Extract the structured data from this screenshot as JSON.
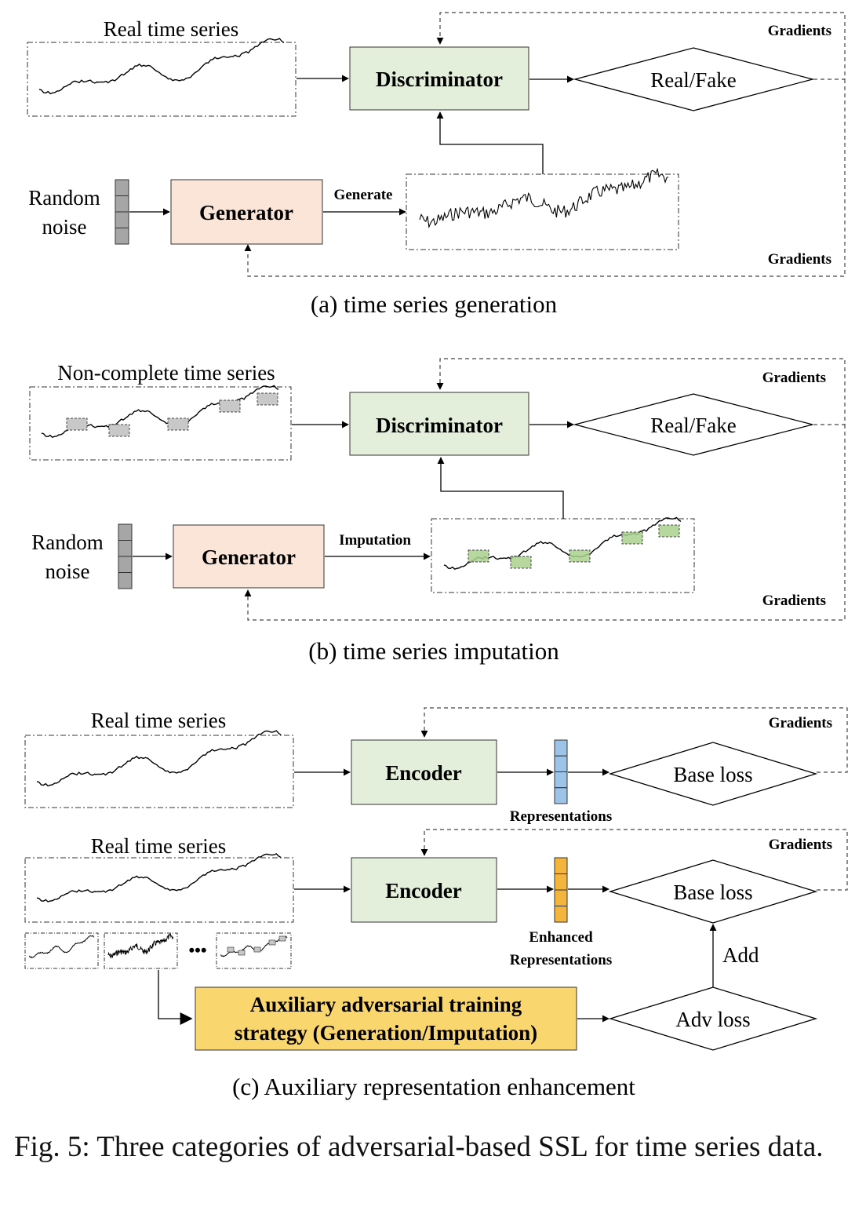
{
  "panel_a": {
    "input_label": "Real time series",
    "discriminator": "Discriminator",
    "output": "Real/Fake",
    "gradients_top": "Gradients",
    "gradients_bottom": "Gradients",
    "noise_line1": "Random",
    "noise_line2": "noise",
    "generator": "Generator",
    "generate": "Generate",
    "caption": "(a) time series generation"
  },
  "panel_b": {
    "input_label": "Non-complete time series",
    "discriminator": "Discriminator",
    "output": "Real/Fake",
    "gradients_top": "Gradients",
    "gradients_bottom": "Gradients",
    "noise_line1": "Random",
    "noise_line2": "noise",
    "generator": "Generator",
    "imputation": "Imputation",
    "caption": "(b) time series imputation"
  },
  "panel_c": {
    "input_label_1": "Real time series",
    "input_label_2": "Real time series",
    "encoder_1": "Encoder",
    "encoder_2": "Encoder",
    "representations": "Representations",
    "enhanced_line1": "Enhanced",
    "enhanced_line2": "Representations",
    "base_loss_1": "Base loss",
    "base_loss_2": "Base loss",
    "gradients_1": "Gradients",
    "gradients_2": "Gradients",
    "ellipsis": "•••",
    "aux_line1": "Auxiliary adversarial training",
    "aux_line2": "strategy (Generation/Imputation)",
    "adv_loss": "Adv loss",
    "add": "Add",
    "caption": "(c) Auxiliary representation enhancement"
  },
  "figure_caption": "Fig. 5: Three categories of adversarial-based SSL for time series data.",
  "colors": {
    "discriminator_fill": "#e3efdb",
    "encoder_fill": "#e3efdb",
    "generator_fill": "#fae5d8",
    "aux_fill": "#fad66f",
    "noise_cell": "#a6a6a6",
    "representation_cell": "#9dc3e6",
    "enhanced_cell": "#f4b53f",
    "missing_patch": "#c8c8c8",
    "imputed_patch": "#a9d18e"
  }
}
